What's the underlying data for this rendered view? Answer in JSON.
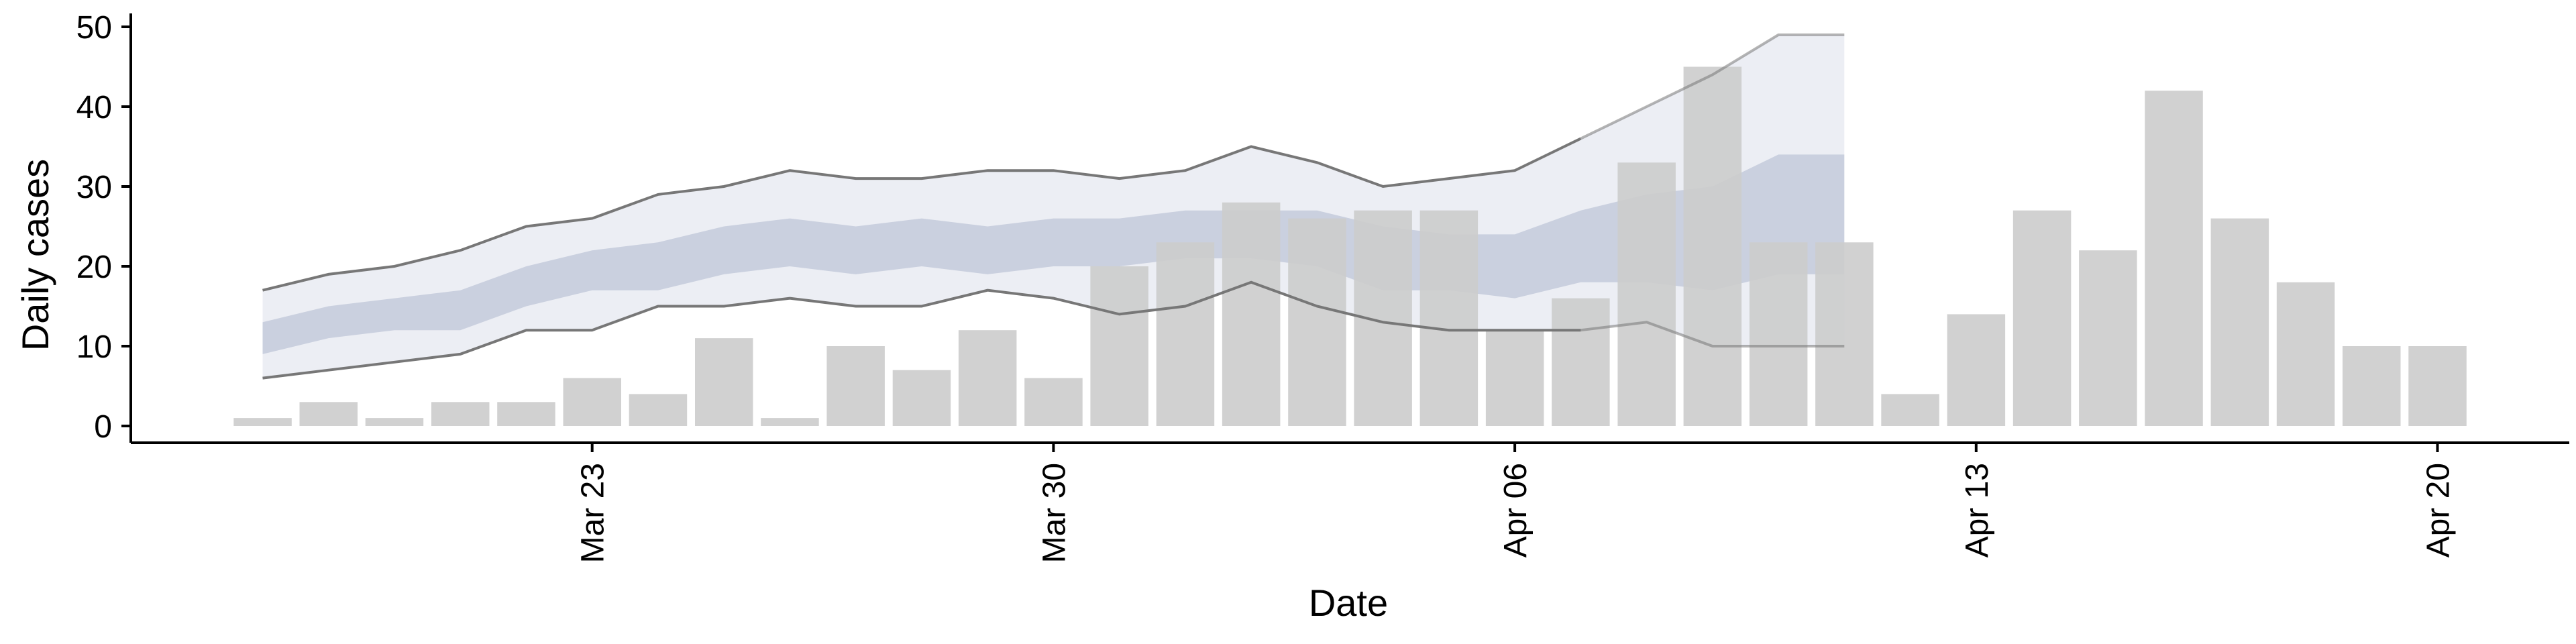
{
  "chart_data": {
    "type": "bar",
    "xlabel": "Date",
    "ylabel": "Daily cases",
    "ylim": [
      0,
      50
    ],
    "xlim": [
      "2020-03-16",
      "2020-04-22"
    ],
    "y_ticks": [
      0,
      10,
      20,
      30,
      40,
      50
    ],
    "x_ticks": [
      {
        "date": "2020-03-23",
        "label": "Mar 23"
      },
      {
        "date": "2020-03-30",
        "label": "Mar 30"
      },
      {
        "date": "2020-04-06",
        "label": "Apr 06"
      },
      {
        "date": "2020-04-13",
        "label": "Apr 13"
      },
      {
        "date": "2020-04-20",
        "label": "Apr 20"
      }
    ],
    "grid": false,
    "legend": "none",
    "bars": {
      "color": "#cccccc",
      "dates": [
        "2020-03-18",
        "2020-03-19",
        "2020-03-20",
        "2020-03-21",
        "2020-03-22",
        "2020-03-23",
        "2020-03-24",
        "2020-03-25",
        "2020-03-26",
        "2020-03-27",
        "2020-03-28",
        "2020-03-29",
        "2020-03-30",
        "2020-03-31",
        "2020-04-01",
        "2020-04-02",
        "2020-04-03",
        "2020-04-04",
        "2020-04-05",
        "2020-04-06",
        "2020-04-07",
        "2020-04-08",
        "2020-04-09",
        "2020-04-10",
        "2020-04-11",
        "2020-04-12",
        "2020-04-13",
        "2020-04-14",
        "2020-04-15",
        "2020-04-16",
        "2020-04-17",
        "2020-04-18",
        "2020-04-19",
        "2020-04-20"
      ],
      "values": [
        1,
        3,
        1,
        3,
        3,
        6,
        4,
        11,
        1,
        10,
        7,
        12,
        6,
        20,
        23,
        28,
        26,
        27,
        27,
        12,
        16,
        33,
        45,
        23,
        23,
        4,
        14,
        27,
        22,
        42,
        26,
        18,
        10,
        10
      ]
    },
    "projection": {
      "dates": [
        "2020-03-18",
        "2020-03-19",
        "2020-03-20",
        "2020-03-21",
        "2020-03-22",
        "2020-03-23",
        "2020-03-24",
        "2020-03-25",
        "2020-03-26",
        "2020-03-27",
        "2020-03-28",
        "2020-03-29",
        "2020-03-30",
        "2020-03-31",
        "2020-04-01",
        "2020-04-02",
        "2020-04-03",
        "2020-04-04",
        "2020-04-05",
        "2020-04-06",
        "2020-04-07",
        "2020-04-08",
        "2020-04-09",
        "2020-04-10",
        "2020-04-11"
      ],
      "outer_upper": [
        17,
        19,
        20,
        22,
        25,
        26,
        29,
        30,
        32,
        31,
        31,
        32,
        32,
        31,
        32,
        35,
        33,
        30,
        31,
        32,
        36,
        40,
        44,
        49,
        49
      ],
      "outer_lower": [
        6,
        7,
        8,
        9,
        12,
        12,
        15,
        15,
        16,
        15,
        15,
        17,
        16,
        14,
        15,
        18,
        15,
        13,
        12,
        12,
        12,
        13,
        10,
        10,
        10
      ],
      "inner_upper": [
        13,
        15,
        16,
        17,
        20,
        22,
        23,
        25,
        26,
        25,
        26,
        25,
        26,
        26,
        27,
        27,
        27,
        25,
        24,
        24,
        27,
        29,
        30,
        34,
        34
      ],
      "inner_lower": [
        9,
        11,
        12,
        12,
        15,
        17,
        17,
        19,
        20,
        19,
        20,
        19,
        20,
        20,
        21,
        21,
        20,
        17,
        17,
        16,
        18,
        18,
        17,
        19,
        19
      ],
      "band_color_outer": "#e6e8f0",
      "band_color_inner": "#bcc3d6",
      "line_color": "#777777",
      "forecast_start": "2020-04-07"
    }
  }
}
